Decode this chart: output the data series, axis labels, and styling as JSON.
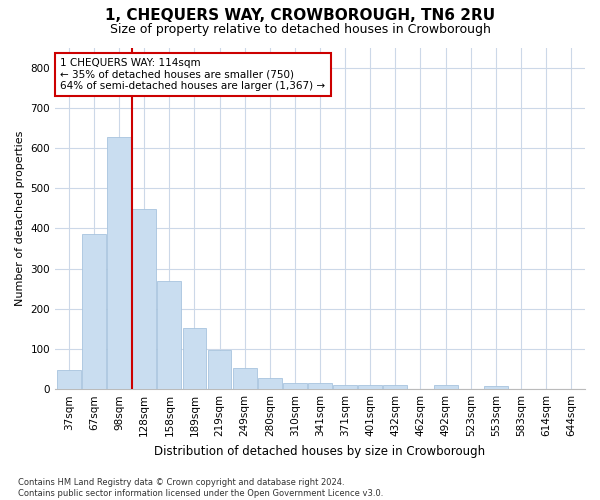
{
  "title": "1, CHEQUERS WAY, CROWBOROUGH, TN6 2RU",
  "subtitle": "Size of property relative to detached houses in Crowborough",
  "xlabel": "Distribution of detached houses by size in Crowborough",
  "ylabel": "Number of detached properties",
  "bar_color": "#c9ddf0",
  "bar_edge_color": "#a8c4de",
  "grid_color": "#ccd8e8",
  "background_color": "#ffffff",
  "categories": [
    "37sqm",
    "67sqm",
    "98sqm",
    "128sqm",
    "158sqm",
    "189sqm",
    "219sqm",
    "249sqm",
    "280sqm",
    "310sqm",
    "341sqm",
    "371sqm",
    "401sqm",
    "432sqm",
    "462sqm",
    "492sqm",
    "523sqm",
    "553sqm",
    "583sqm",
    "614sqm",
    "644sqm"
  ],
  "values": [
    47,
    385,
    627,
    447,
    268,
    153,
    97,
    52,
    28,
    15,
    15,
    11,
    10,
    10,
    0,
    10,
    0,
    8,
    0,
    0,
    0
  ],
  "ylim": [
    0,
    850
  ],
  "yticks": [
    0,
    100,
    200,
    300,
    400,
    500,
    600,
    700,
    800
  ],
  "property_line_x": 2.5,
  "annotation_text": "1 CHEQUERS WAY: 114sqm\n← 35% of detached houses are smaller (750)\n64% of semi-detached houses are larger (1,367) →",
  "annotation_box_color": "#ffffff",
  "annotation_box_edge": "#cc0000",
  "footnote": "Contains HM Land Registry data © Crown copyright and database right 2024.\nContains public sector information licensed under the Open Government Licence v3.0.",
  "property_line_color": "#cc0000",
  "title_fontsize": 11,
  "subtitle_fontsize": 9,
  "ylabel_fontsize": 8,
  "xlabel_fontsize": 8.5,
  "annot_fontsize": 7.5,
  "tick_fontsize": 7.5,
  "footnote_fontsize": 6
}
